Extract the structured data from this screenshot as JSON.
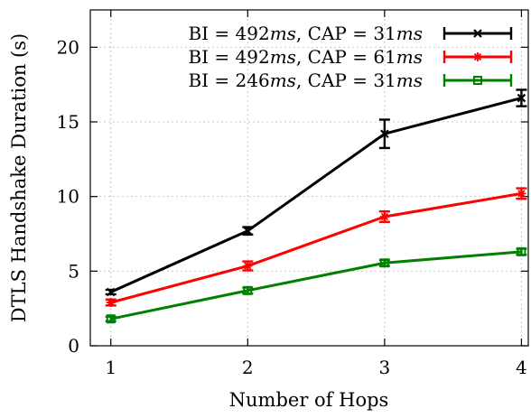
{
  "chart_data": {
    "type": "line",
    "xlabel": "Number of Hops",
    "ylabel": "DTLS Handshake Duration (s)",
    "x": [
      1,
      2,
      3,
      4
    ],
    "x_ticks": [
      1,
      2,
      3,
      4
    ],
    "y_ticks": [
      0,
      5,
      10,
      15,
      20
    ],
    "xlim": [
      0.85,
      4.05
    ],
    "ylim": [
      0,
      22.5
    ],
    "grid": true,
    "legend_position": "top-right",
    "series": [
      {
        "name": "BI = 492ms, CAP = 31ms",
        "legend_parts": [
          "BI = 492",
          "ms",
          ", CAP = 31",
          "ms"
        ],
        "color": "#000000",
        "marker": "cross",
        "values": [
          3.6,
          7.7,
          14.2,
          16.6
        ],
        "errors": [
          0.15,
          0.25,
          0.95,
          0.55
        ]
      },
      {
        "name": "BI = 492ms, CAP = 61ms",
        "legend_parts": [
          "BI = 492",
          "ms",
          ", CAP = 61",
          "ms"
        ],
        "color": "#ff0000",
        "marker": "star",
        "values": [
          2.9,
          5.35,
          8.65,
          10.2
        ],
        "errors": [
          0.2,
          0.3,
          0.35,
          0.35
        ]
      },
      {
        "name": "BI = 246ms, CAP = 31ms",
        "legend_parts": [
          "BI = 246",
          "ms",
          ", CAP = 31",
          "ms"
        ],
        "color": "#008000",
        "marker": "square",
        "values": [
          1.8,
          3.7,
          5.55,
          6.3
        ],
        "errors": [
          0.15,
          0.2,
          0.2,
          0.2
        ]
      }
    ]
  }
}
